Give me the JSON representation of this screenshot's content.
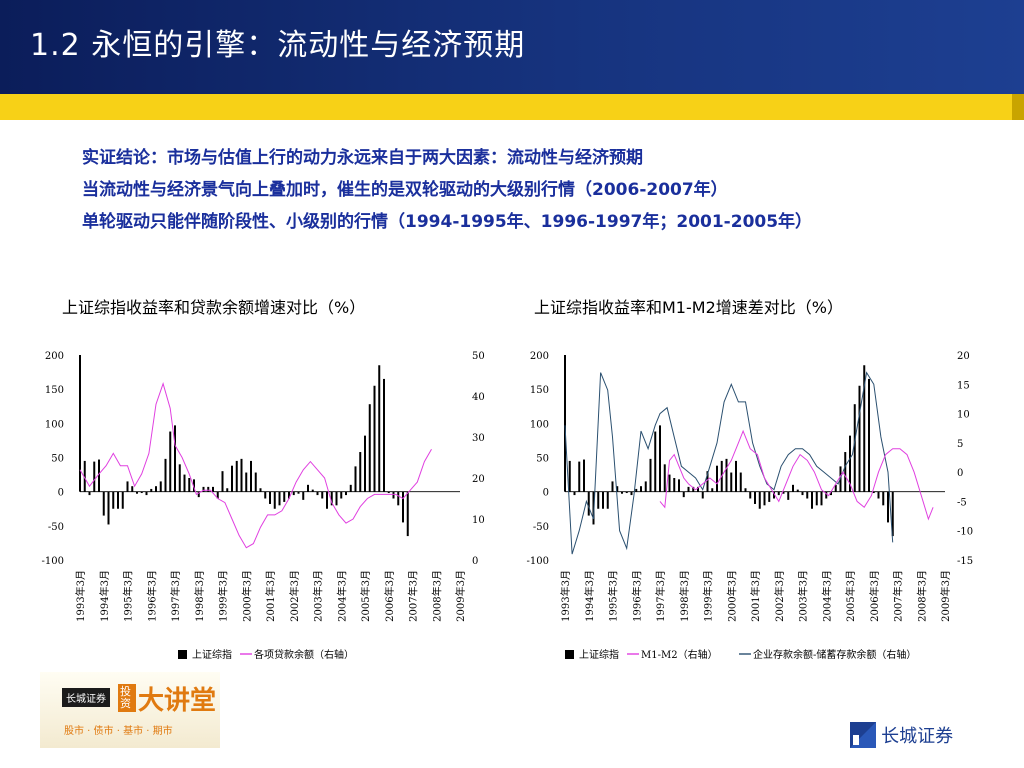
{
  "header": {
    "title": "1.2  永恒的引擎：流动性与经济预期"
  },
  "intro": {
    "lines": [
      "实证结论：市场与估值上行的动力永远来自于两大因素：流动性与经济预期",
      "当流动性与经济景气向上叠加时，催生的是双轮驱动的大级别行情（2006-2007年）",
      "单轮驱动只能伴随阶段性、小级别的行情（1994-1995年、1996-1997年；2001-2005年）"
    ]
  },
  "colors": {
    "header_bg": "#0b1d5a",
    "stripe": "#f7d117",
    "intro_text": "#1a2f9c",
    "pink": "#e040e0",
    "teal": "#2b5070"
  },
  "logo": {
    "org": "长城证券",
    "badge": "投资",
    "title": "大讲堂",
    "subtitle": "股市 · 债市 · 基市 · 期市"
  },
  "brand": {
    "name": "长城证券",
    "icon": "great-wall-icon"
  },
  "chart_data": [
    {
      "type": "bar",
      "title": "上证综指收益率和贷款余额增速对比（%）",
      "x_labels": [
        "1993年3月",
        "1994年3月",
        "1995年3月",
        "1996年3月",
        "1997年3月",
        "1998年3月",
        "1999年3月",
        "2000年3月",
        "2001年3月",
        "2002年3月",
        "2003年3月",
        "2004年3月",
        "2005年3月",
        "2006年3月",
        "2007年3月",
        "2008年3月",
        "2009年3月"
      ],
      "left_axis": {
        "min": -100,
        "max": 200,
        "ticks": [
          200,
          150,
          100,
          50,
          0,
          -50,
          -100
        ]
      },
      "right_axis": {
        "min": 0,
        "max": 50,
        "ticks": [
          50,
          40,
          30,
          20,
          10,
          0
        ]
      },
      "legend": [
        "上证综指",
        "各项贷款余额（右轴）"
      ],
      "bars": [
        {
          "x": 1993.0,
          "v": 200
        },
        {
          "x": 1993.2,
          "v": 45
        },
        {
          "x": 1993.4,
          "v": -5
        },
        {
          "x": 1993.6,
          "v": 44
        },
        {
          "x": 1993.8,
          "v": 47
        },
        {
          "x": 1994.0,
          "v": -35
        },
        {
          "x": 1994.2,
          "v": -48
        },
        {
          "x": 1994.4,
          "v": -25
        },
        {
          "x": 1994.6,
          "v": -25
        },
        {
          "x": 1994.8,
          "v": -25
        },
        {
          "x": 1995.0,
          "v": 15
        },
        {
          "x": 1995.2,
          "v": 8
        },
        {
          "x": 1995.4,
          "v": -3
        },
        {
          "x": 1995.6,
          "v": -2
        },
        {
          "x": 1995.8,
          "v": -5
        },
        {
          "x": 1996.0,
          "v": 4
        },
        {
          "x": 1996.2,
          "v": 8
        },
        {
          "x": 1996.4,
          "v": 15
        },
        {
          "x": 1996.6,
          "v": 48
        },
        {
          "x": 1996.8,
          "v": 88
        },
        {
          "x": 1997.0,
          "v": 97
        },
        {
          "x": 1997.2,
          "v": 40
        },
        {
          "x": 1997.4,
          "v": 25
        },
        {
          "x": 1997.6,
          "v": 20
        },
        {
          "x": 1997.8,
          "v": 18
        },
        {
          "x": 1998.0,
          "v": -8
        },
        {
          "x": 1998.2,
          "v": 7
        },
        {
          "x": 1998.4,
          "v": 7
        },
        {
          "x": 1998.6,
          "v": 7
        },
        {
          "x": 1998.8,
          "v": -10
        },
        {
          "x": 1999.0,
          "v": 30
        },
        {
          "x": 1999.2,
          "v": 5
        },
        {
          "x": 1999.4,
          "v": 38
        },
        {
          "x": 1999.6,
          "v": 45
        },
        {
          "x": 1999.8,
          "v": 48
        },
        {
          "x": 2000.0,
          "v": 28
        },
        {
          "x": 2000.2,
          "v": 45
        },
        {
          "x": 2000.4,
          "v": 28
        },
        {
          "x": 2000.6,
          "v": 5
        },
        {
          "x": 2000.8,
          "v": -10
        },
        {
          "x": 2001.0,
          "v": -18
        },
        {
          "x": 2001.2,
          "v": -25
        },
        {
          "x": 2001.4,
          "v": -20
        },
        {
          "x": 2001.6,
          "v": -15
        },
        {
          "x": 2001.8,
          "v": -10
        },
        {
          "x": 2002.0,
          "v": -5
        },
        {
          "x": 2002.2,
          "v": -3
        },
        {
          "x": 2002.4,
          "v": -12
        },
        {
          "x": 2002.6,
          "v": 10
        },
        {
          "x": 2002.8,
          "v": 3
        },
        {
          "x": 2003.0,
          "v": -5
        },
        {
          "x": 2003.2,
          "v": -10
        },
        {
          "x": 2003.4,
          "v": -25
        },
        {
          "x": 2003.6,
          "v": -20
        },
        {
          "x": 2003.8,
          "v": -20
        },
        {
          "x": 2004.0,
          "v": -10
        },
        {
          "x": 2004.2,
          "v": -5
        },
        {
          "x": 2004.4,
          "v": 10
        },
        {
          "x": 2004.6,
          "v": 37
        },
        {
          "x": 2004.8,
          "v": 58
        },
        {
          "x": 2005.0,
          "v": 82
        },
        {
          "x": 2005.2,
          "v": 128
        },
        {
          "x": 2005.4,
          "v": 155
        },
        {
          "x": 2005.6,
          "v": 185
        },
        {
          "x": 2005.8,
          "v": 165
        },
        {
          "x": 2006.0,
          "v": -2
        },
        {
          "x": 2006.2,
          "v": -10
        },
        {
          "x": 2006.4,
          "v": -20
        },
        {
          "x": 2006.6,
          "v": -45
        },
        {
          "x": 2006.8,
          "v": -65
        }
      ],
      "line": [
        [
          1993.0,
          22
        ],
        [
          1993.4,
          18
        ],
        [
          1993.8,
          21
        ],
        [
          1994.1,
          23
        ],
        [
          1994.4,
          26
        ],
        [
          1994.7,
          23
        ],
        [
          1995.0,
          23
        ],
        [
          1995.3,
          18
        ],
        [
          1995.6,
          21
        ],
        [
          1995.9,
          26
        ],
        [
          1996.2,
          38
        ],
        [
          1996.5,
          43
        ],
        [
          1996.8,
          37
        ],
        [
          1997.0,
          28
        ],
        [
          1997.3,
          25
        ],
        [
          1997.6,
          21
        ],
        [
          1997.9,
          16
        ],
        [
          1998.2,
          17
        ],
        [
          1998.5,
          17
        ],
        [
          1998.8,
          15
        ],
        [
          1999.1,
          14
        ],
        [
          1999.4,
          10
        ],
        [
          1999.7,
          6
        ],
        [
          2000.0,
          3
        ],
        [
          2000.3,
          4
        ],
        [
          2000.6,
          8
        ],
        [
          2000.9,
          11
        ],
        [
          2001.2,
          11
        ],
        [
          2001.5,
          12
        ],
        [
          2001.8,
          15
        ],
        [
          2002.1,
          19
        ],
        [
          2002.4,
          22
        ],
        [
          2002.7,
          24
        ],
        [
          2003.0,
          22
        ],
        [
          2003.3,
          20
        ],
        [
          2003.6,
          14
        ],
        [
          2003.9,
          11
        ],
        [
          2004.2,
          9
        ],
        [
          2004.5,
          10
        ],
        [
          2004.8,
          13
        ],
        [
          2005.1,
          15
        ],
        [
          2005.4,
          16
        ],
        [
          2005.7,
          16
        ],
        [
          2006.0,
          16
        ],
        [
          2006.3,
          16
        ],
        [
          2006.6,
          15
        ],
        [
          2006.9,
          17
        ],
        [
          2007.2,
          19
        ],
        [
          2007.5,
          24
        ],
        [
          2007.8,
          27
        ]
      ]
    },
    {
      "type": "bar",
      "title": "上证综指收益率和M1-M2增速差对比（%）",
      "x_labels": [
        "1993年3月",
        "1994年3月",
        "1995年3月",
        "1996年3月",
        "1997年3月",
        "1998年3月",
        "1999年3月",
        "2000年3月",
        "2001年3月",
        "2002年3月",
        "2003年3月",
        "2004年3月",
        "2005年3月",
        "2006年3月",
        "2007年3月",
        "2008年3月",
        "2009年3月"
      ],
      "left_axis": {
        "min": -100,
        "max": 200,
        "ticks": [
          200,
          150,
          100,
          50,
          0,
          -50,
          -100
        ]
      },
      "right_axis": {
        "min": -15,
        "max": 20,
        "ticks": [
          20,
          15,
          10,
          5,
          0,
          -5,
          -10,
          -15
        ]
      },
      "legend": [
        "上证综指",
        "M1-M2（右轴）",
        "企业存款余额-储蓄存款余额（右轴）"
      ],
      "bars": [
        {
          "x": 1993.0,
          "v": 200
        },
        {
          "x": 1993.2,
          "v": 45
        },
        {
          "x": 1993.4,
          "v": -5
        },
        {
          "x": 1993.6,
          "v": 44
        },
        {
          "x": 1993.8,
          "v": 47
        },
        {
          "x": 1994.0,
          "v": -35
        },
        {
          "x": 1994.2,
          "v": -48
        },
        {
          "x": 1994.4,
          "v": -25
        },
        {
          "x": 1994.6,
          "v": -25
        },
        {
          "x": 1994.8,
          "v": -25
        },
        {
          "x": 1995.0,
          "v": 15
        },
        {
          "x": 1995.2,
          "v": 8
        },
        {
          "x": 1995.4,
          "v": -3
        },
        {
          "x": 1995.6,
          "v": -2
        },
        {
          "x": 1995.8,
          "v": -5
        },
        {
          "x": 1996.0,
          "v": 4
        },
        {
          "x": 1996.2,
          "v": 8
        },
        {
          "x": 1996.4,
          "v": 15
        },
        {
          "x": 1996.6,
          "v": 48
        },
        {
          "x": 1996.8,
          "v": 88
        },
        {
          "x": 1997.0,
          "v": 97
        },
        {
          "x": 1997.2,
          "v": 40
        },
        {
          "x": 1997.4,
          "v": 25
        },
        {
          "x": 1997.6,
          "v": 20
        },
        {
          "x": 1997.8,
          "v": 18
        },
        {
          "x": 1998.0,
          "v": -8
        },
        {
          "x": 1998.2,
          "v": 7
        },
        {
          "x": 1998.4,
          "v": 7
        },
        {
          "x": 1998.6,
          "v": 7
        },
        {
          "x": 1998.8,
          "v": -10
        },
        {
          "x": 1999.0,
          "v": 30
        },
        {
          "x": 1999.2,
          "v": 5
        },
        {
          "x": 1999.4,
          "v": 38
        },
        {
          "x": 1999.6,
          "v": 45
        },
        {
          "x": 1999.8,
          "v": 48
        },
        {
          "x": 2000.0,
          "v": 28
        },
        {
          "x": 2000.2,
          "v": 45
        },
        {
          "x": 2000.4,
          "v": 28
        },
        {
          "x": 2000.6,
          "v": 5
        },
        {
          "x": 2000.8,
          "v": -10
        },
        {
          "x": 2001.0,
          "v": -18
        },
        {
          "x": 2001.2,
          "v": -25
        },
        {
          "x": 2001.4,
          "v": -20
        },
        {
          "x": 2001.6,
          "v": -15
        },
        {
          "x": 2001.8,
          "v": -10
        },
        {
          "x": 2002.0,
          "v": -5
        },
        {
          "x": 2002.2,
          "v": -3
        },
        {
          "x": 2002.4,
          "v": -12
        },
        {
          "x": 2002.6,
          "v": 10
        },
        {
          "x": 2002.8,
          "v": 3
        },
        {
          "x": 2003.0,
          "v": -5
        },
        {
          "x": 2003.2,
          "v": -10
        },
        {
          "x": 2003.4,
          "v": -25
        },
        {
          "x": 2003.6,
          "v": -20
        },
        {
          "x": 2003.8,
          "v": -20
        },
        {
          "x": 2004.0,
          "v": -10
        },
        {
          "x": 2004.2,
          "v": -5
        },
        {
          "x": 2004.4,
          "v": 10
        },
        {
          "x": 2004.6,
          "v": 37
        },
        {
          "x": 2004.8,
          "v": 58
        },
        {
          "x": 2005.0,
          "v": 82
        },
        {
          "x": 2005.2,
          "v": 128
        },
        {
          "x": 2005.4,
          "v": 155
        },
        {
          "x": 2005.6,
          "v": 185
        },
        {
          "x": 2005.8,
          "v": 165
        },
        {
          "x": 2006.0,
          "v": -2
        },
        {
          "x": 2006.2,
          "v": -10
        },
        {
          "x": 2006.4,
          "v": -20
        },
        {
          "x": 2006.6,
          "v": -45
        },
        {
          "x": 2006.8,
          "v": -65
        }
      ],
      "line_m1m2": [
        [
          1997.0,
          -5
        ],
        [
          1997.2,
          -6
        ],
        [
          1997.4,
          2
        ],
        [
          1997.6,
          3
        ],
        [
          1997.8,
          1
        ],
        [
          1998.0,
          -1
        ],
        [
          1998.2,
          -2
        ],
        [
          1998.5,
          -3
        ],
        [
          1998.8,
          -2
        ],
        [
          1999.1,
          -1
        ],
        [
          1999.4,
          -2
        ],
        [
          1999.7,
          0
        ],
        [
          2000.0,
          2
        ],
        [
          2000.3,
          5
        ],
        [
          2000.5,
          7
        ],
        [
          2000.8,
          4
        ],
        [
          2001.1,
          3
        ],
        [
          2001.4,
          -1
        ],
        [
          2001.7,
          -3
        ],
        [
          2002.0,
          -5
        ],
        [
          2002.3,
          -2
        ],
        [
          2002.6,
          1
        ],
        [
          2002.9,
          3
        ],
        [
          2003.2,
          2
        ],
        [
          2003.5,
          0
        ],
        [
          2003.8,
          -3
        ],
        [
          2004.1,
          -4
        ],
        [
          2004.4,
          -2
        ],
        [
          2004.7,
          0
        ],
        [
          2005.0,
          -2
        ],
        [
          2005.3,
          -5
        ],
        [
          2005.6,
          -6
        ],
        [
          2005.9,
          -4
        ],
        [
          2006.2,
          0
        ],
        [
          2006.5,
          3
        ],
        [
          2006.8,
          4
        ],
        [
          2007.1,
          4
        ],
        [
          2007.4,
          3
        ],
        [
          2007.7,
          0
        ],
        [
          2008.0,
          -4
        ],
        [
          2008.3,
          -8
        ],
        [
          2008.5,
          -6
        ]
      ],
      "line_deposit": [
        [
          1993.0,
          8
        ],
        [
          1993.3,
          -14
        ],
        [
          1993.6,
          -10
        ],
        [
          1993.9,
          -5
        ],
        [
          1994.2,
          -8
        ],
        [
          1994.5,
          17
        ],
        [
          1994.8,
          14
        ],
        [
          1995.0,
          6
        ],
        [
          1995.3,
          -10
        ],
        [
          1995.6,
          -13
        ],
        [
          1995.9,
          -4
        ],
        [
          1996.2,
          7
        ],
        [
          1996.5,
          4
        ],
        [
          1996.8,
          8
        ],
        [
          1997.0,
          10
        ],
        [
          1997.3,
          11
        ],
        [
          1997.6,
          6
        ],
        [
          1997.9,
          1
        ],
        [
          1998.2,
          0
        ],
        [
          1998.5,
          -1
        ],
        [
          1998.8,
          -3
        ],
        [
          1999.1,
          1
        ],
        [
          1999.4,
          5
        ],
        [
          1999.7,
          12
        ],
        [
          2000.0,
          15
        ],
        [
          2000.3,
          12
        ],
        [
          2000.6,
          12
        ],
        [
          2000.9,
          5
        ],
        [
          2001.2,
          1
        ],
        [
          2001.5,
          -2
        ],
        [
          2001.8,
          -3
        ],
        [
          2002.1,
          1
        ],
        [
          2002.4,
          3
        ],
        [
          2002.7,
          4
        ],
        [
          2003.0,
          4
        ],
        [
          2003.3,
          3
        ],
        [
          2003.6,
          1
        ],
        [
          2003.9,
          0
        ],
        [
          2004.2,
          -1
        ],
        [
          2004.5,
          -2
        ],
        [
          2004.8,
          1
        ],
        [
          2005.1,
          3
        ],
        [
          2005.4,
          10
        ],
        [
          2005.7,
          17
        ],
        [
          2006.0,
          15
        ],
        [
          2006.3,
          6
        ],
        [
          2006.6,
          0
        ],
        [
          2006.8,
          -12
        ]
      ]
    }
  ]
}
